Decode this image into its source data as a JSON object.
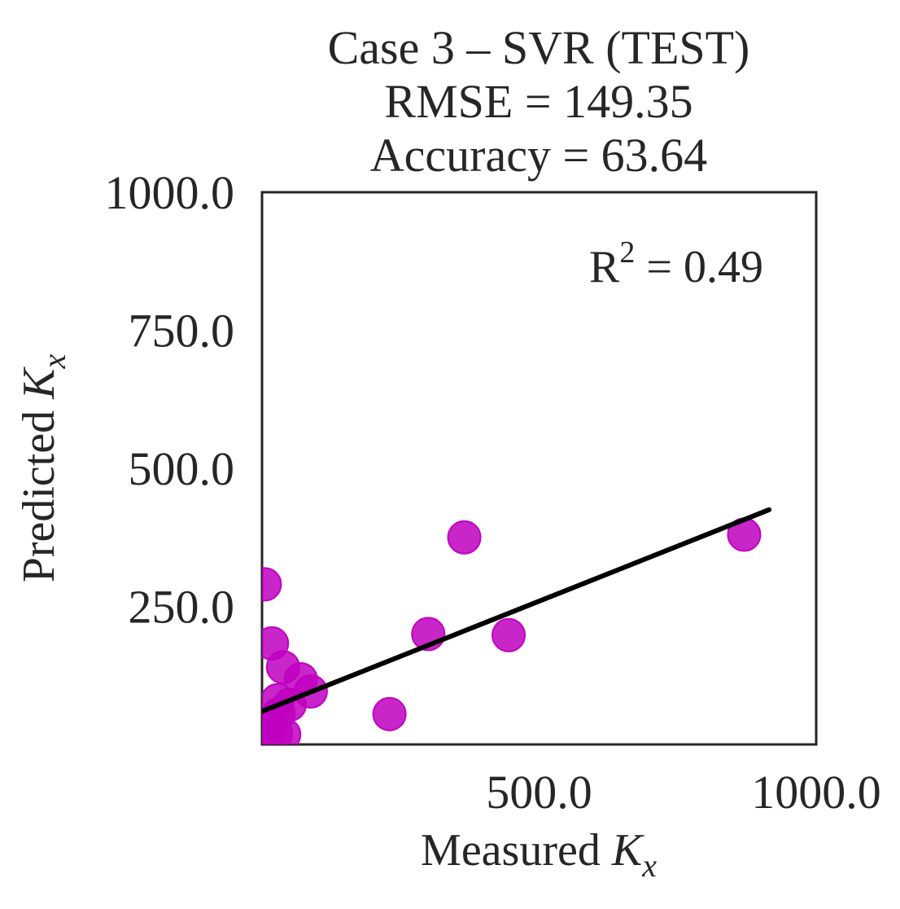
{
  "chart_data": {
    "type": "scatter",
    "title_lines": [
      "Case 3 – SVR (TEST)",
      "RMSE = 149.35",
      "Accuracy = 63.64"
    ],
    "xlabel": "Measured",
    "xlabel_var": "K",
    "xlabel_sub": "x",
    "ylabel": "Predicted",
    "ylabel_var": "K",
    "ylabel_sub": "x",
    "xlim": [
      0,
      1000
    ],
    "ylim": [
      0,
      1000
    ],
    "xticks": [
      500,
      1000
    ],
    "xtick_labels": [
      "500.0",
      "1000.0"
    ],
    "yticks": [
      250,
      500,
      750,
      1000
    ],
    "ytick_labels": [
      "250.0",
      "500.0",
      "750.0",
      "1000.0"
    ],
    "grid": false,
    "annotation": {
      "base": "R",
      "sup": "2",
      "rest": " = 0.49"
    },
    "point_color": "#c000c0",
    "line_color": "#000000",
    "points": [
      {
        "x": 5,
        "y": 290
      },
      {
        "x": 18,
        "y": 183
      },
      {
        "x": 38,
        "y": 140
      },
      {
        "x": 70,
        "y": 118
      },
      {
        "x": 88,
        "y": 96
      },
      {
        "x": 28,
        "y": 80
      },
      {
        "x": 50,
        "y": 72
      },
      {
        "x": 15,
        "y": 40
      },
      {
        "x": 25,
        "y": 20
      },
      {
        "x": 40,
        "y": 18
      },
      {
        "x": 10,
        "y": 10
      },
      {
        "x": 30,
        "y": 55
      },
      {
        "x": 230,
        "y": 55
      },
      {
        "x": 300,
        "y": 200
      },
      {
        "x": 365,
        "y": 375
      },
      {
        "x": 445,
        "y": 198
      },
      {
        "x": 870,
        "y": 380
      }
    ],
    "fit_line": {
      "x": [
        0,
        915
      ],
      "y": [
        60,
        425
      ]
    }
  }
}
